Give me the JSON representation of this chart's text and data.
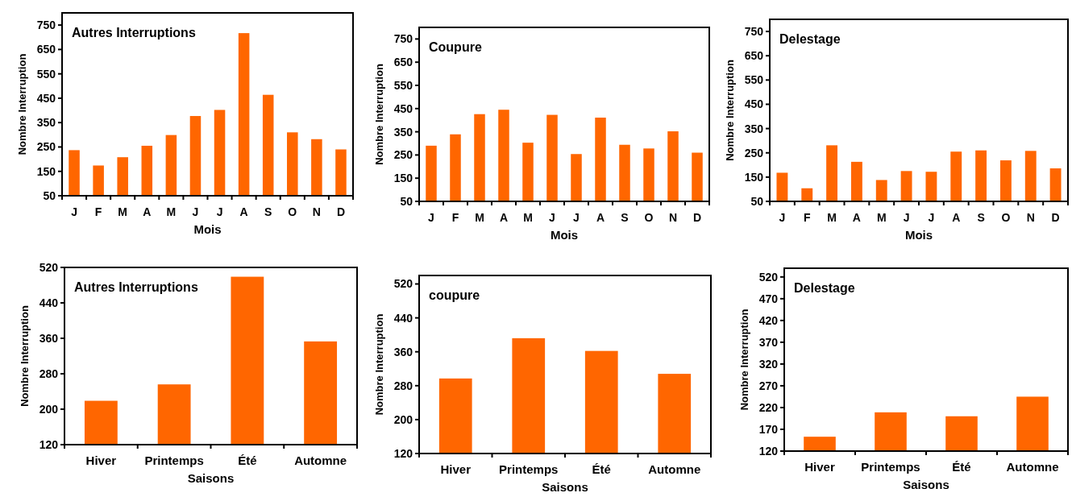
{
  "chart_data": [
    {
      "type": "bar",
      "title": "Autres Interruptions",
      "xlabel": "Mois",
      "ylabel": "Nombre Interruption",
      "categories": [
        "J",
        "F",
        "M",
        "A",
        "M",
        "J",
        "J",
        "A",
        "S",
        "O",
        "N",
        "D"
      ],
      "values": [
        237,
        174,
        208,
        255,
        299,
        377,
        402,
        717,
        464,
        310,
        282,
        240
      ],
      "color": "#ff6600",
      "ylim": [
        50,
        800
      ],
      "yticks": [
        50,
        150,
        250,
        350,
        450,
        550,
        650,
        750
      ]
    },
    {
      "type": "bar",
      "title": "Coupure",
      "xlabel": "Mois",
      "ylabel": "Nombre Interruption",
      "categories": [
        "J",
        "F",
        "M",
        "A",
        "M",
        "J",
        "J",
        "A",
        "S",
        "O",
        "N",
        "D"
      ],
      "values": [
        290,
        339,
        426,
        445,
        303,
        423,
        254,
        411,
        294,
        278,
        352,
        260
      ],
      "color": "#ff6600",
      "ylim": [
        50,
        800
      ],
      "yticks": [
        50,
        150,
        250,
        350,
        450,
        550,
        650,
        750
      ]
    },
    {
      "type": "bar",
      "title": "Delestage",
      "xlabel": "Mois",
      "ylabel": "Nombre Interruption",
      "categories": [
        "J",
        "F",
        "M",
        "A",
        "M",
        "J",
        "J",
        "A",
        "S",
        "O",
        "N",
        "D"
      ],
      "values": [
        168,
        104,
        281,
        213,
        138,
        175,
        172,
        255,
        260,
        219,
        258,
        186
      ],
      "color": "#ff6600",
      "ylim": [
        50,
        800
      ],
      "yticks": [
        50,
        150,
        250,
        350,
        450,
        550,
        650,
        750
      ]
    },
    {
      "type": "bar",
      "title": "Autres Interruptions",
      "xlabel": "Saisons",
      "ylabel": "Nombre Interruption",
      "categories": [
        "Hiver",
        "Printemps",
        "Été",
        "Automne"
      ],
      "values": [
        219,
        256,
        499,
        353
      ],
      "color": "#ff6600",
      "ylim": [
        120,
        520
      ],
      "yticks": [
        120,
        200,
        280,
        360,
        440,
        520
      ]
    },
    {
      "type": "bar",
      "title": "coupure",
      "xlabel": "Saisons",
      "ylabel": "Nombre Interruption",
      "categories": [
        "Hiver",
        "Printemps",
        "Été",
        "Automne"
      ],
      "values": [
        297,
        392,
        362,
        308
      ],
      "color": "#ff6600",
      "ylim": [
        120,
        540
      ],
      "yticks": [
        120,
        200,
        280,
        360,
        440,
        520
      ]
    },
    {
      "type": "bar",
      "title": "Delestage",
      "xlabel": "Saisons",
      "ylabel": "Nombre Interruption",
      "categories": [
        "Hiver",
        "Printemps",
        "Été",
        "Automne"
      ],
      "values": [
        153,
        209,
        200,
        245
      ],
      "color": "#ff6600",
      "ylim": [
        120,
        540
      ],
      "yticks": [
        120,
        170,
        220,
        270,
        320,
        370,
        420,
        470,
        520
      ]
    }
  ]
}
